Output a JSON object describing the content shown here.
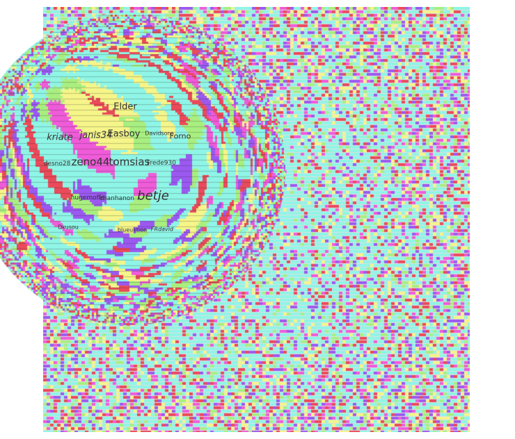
{
  "colors": [
    "#8ff5e6",
    "#ef5bd9",
    "#9b59f0",
    "#ea4a5a",
    "#f5f58a",
    "#a8ef80"
  ],
  "names": [
    {
      "text": "Elder",
      "size": 13
    },
    {
      "text": "kriate",
      "size": 13,
      "italic": true
    },
    {
      "text": "janis34",
      "size": 13,
      "italic": true
    },
    {
      "text": "Easboy",
      "size": 13
    },
    {
      "text": "Davidsons",
      "size": 8
    },
    {
      "text": "Forno",
      "size": 11
    },
    {
      "text": "desno28",
      "size": 9
    },
    {
      "text": "zeno44",
      "size": 15
    },
    {
      "text": "tomsias",
      "size": 15
    },
    {
      "text": "Frede930",
      "size": 9
    },
    {
      "text": "hugemoffe",
      "size": 9
    },
    {
      "text": "chanhanon",
      "size": 9
    },
    {
      "text": "betje",
      "size": 18,
      "italic": true
    },
    {
      "text": "Dkusou",
      "size": 8
    },
    {
      "text": "blueuktion",
      "size": 8
    },
    {
      "text": "FRdavid",
      "size": 8,
      "italic": true
    }
  ]
}
